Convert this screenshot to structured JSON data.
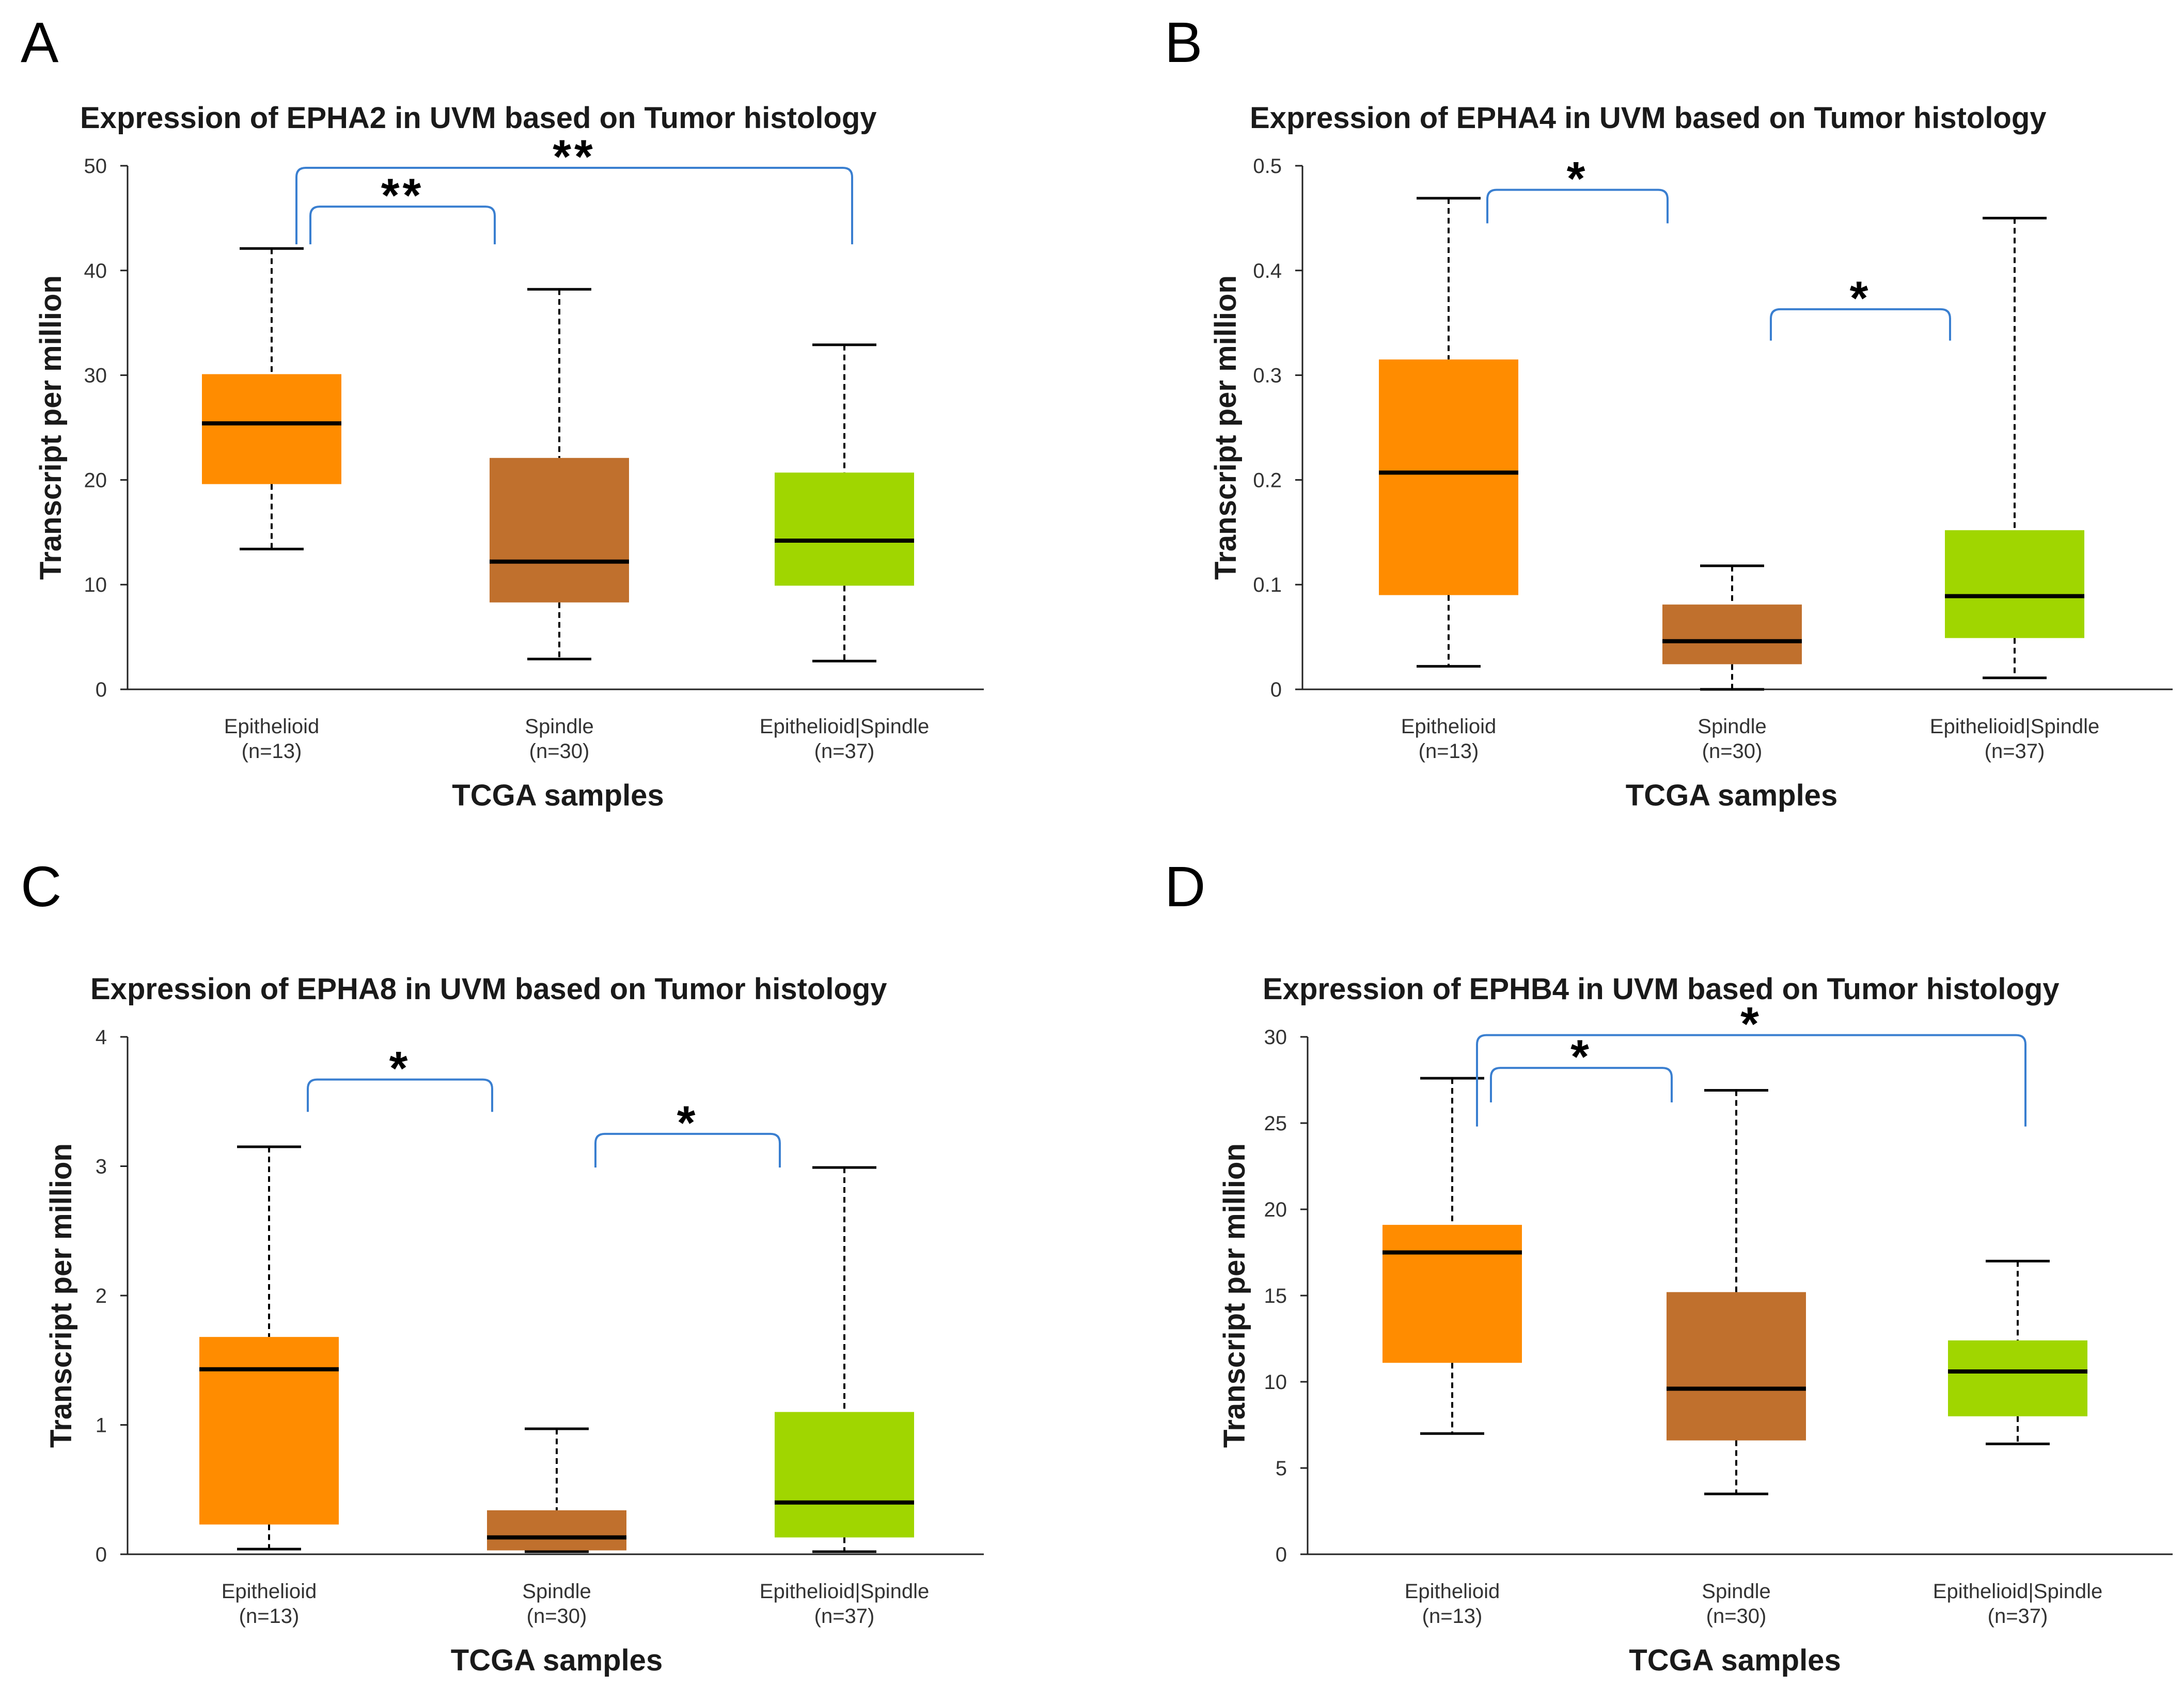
{
  "chart_data": [
    {
      "panel": "A",
      "type": "box",
      "title": "Expression of EPHA2 in UVM based on Tumor histology",
      "xlabel": "TCGA samples",
      "ylabel": "Transcript per million",
      "ylim": [
        0,
        50
      ],
      "yticks": [
        0,
        10,
        20,
        30,
        40,
        50
      ],
      "yticklabels": [
        "0",
        "10",
        "20",
        "30",
        "40",
        "50"
      ],
      "categories": [
        {
          "name": "Epithelioid",
          "n": "(n=13)",
          "color": "#ff8c00",
          "min": 13.4,
          "q1": 19.6,
          "median": 25.4,
          "q3": 30.1,
          "max": 42.1
        },
        {
          "name": "Spindle",
          "n": "(n=30)",
          "color": "#c0702d",
          "min": 2.9,
          "q1": 8.3,
          "median": 12.2,
          "q3": 22.1,
          "max": 38.2
        },
        {
          "name": "Epithelioid|Spindle",
          "n": "(n=37)",
          "color": "#a0d600",
          "min": 2.7,
          "q1": 9.9,
          "median": 14.2,
          "q3": 20.7,
          "max": 32.9
        }
      ],
      "significance": [
        {
          "from": 0,
          "to": 1,
          "label": "**",
          "level": 46.1,
          "left_drop": 42.5,
          "right_drop": 42.5
        },
        {
          "from": 0,
          "to": 2,
          "label": "**",
          "level": 49.8,
          "left_drop": 42.5,
          "right_drop": 42.5
        }
      ]
    },
    {
      "panel": "B",
      "type": "box",
      "title": "Expression of EPHA4 in UVM based on Tumor histology",
      "xlabel": "TCGA samples",
      "ylabel": "Transcript per million",
      "ylim": [
        0,
        0.5
      ],
      "yticks": [
        0,
        0.1,
        0.2,
        0.3,
        0.4,
        0.5
      ],
      "yticklabels": [
        "0",
        "0.1",
        "0.2",
        "0.3",
        "0.4",
        "0.5"
      ],
      "categories": [
        {
          "name": "Epithelioid",
          "n": "(n=13)",
          "color": "#ff8c00",
          "min": 0.022,
          "q1": 0.09,
          "median": 0.207,
          "q3": 0.315,
          "max": 0.469
        },
        {
          "name": "Spindle",
          "n": "(n=30)",
          "color": "#c0702d",
          "min": 0.0,
          "q1": 0.024,
          "median": 0.046,
          "q3": 0.081,
          "max": 0.118
        },
        {
          "name": "Epithelioid|Spindle",
          "n": "(n=37)",
          "color": "#a0d600",
          "min": 0.011,
          "q1": 0.049,
          "median": 0.089,
          "q3": 0.152,
          "max": 0.45
        }
      ],
      "significance": [
        {
          "from": 0,
          "to": 1,
          "label": "*",
          "level": 0.477,
          "left_drop": 0.445,
          "right_drop": 0.445
        },
        {
          "from": 1,
          "to": 2,
          "label": "*",
          "level": 0.363,
          "left_drop": 0.333,
          "right_drop": 0.333
        }
      ]
    },
    {
      "panel": "C",
      "type": "box",
      "title": "Expression of EPHA8 in UVM based on Tumor histology",
      "xlabel": "TCGA samples",
      "ylabel": "Transcript per million",
      "ylim": [
        0,
        4
      ],
      "yticks": [
        0,
        1,
        2,
        3,
        4
      ],
      "yticklabels": [
        "0",
        "1",
        "2",
        "3",
        "4"
      ],
      "categories": [
        {
          "name": "Epithelioid",
          "n": "(n=13)",
          "color": "#ff8c00",
          "min": 0.04,
          "q1": 0.23,
          "median": 1.43,
          "q3": 1.68,
          "max": 3.15
        },
        {
          "name": "Spindle",
          "n": "(n=30)",
          "color": "#c0702d",
          "min": 0.02,
          "q1": 0.03,
          "median": 0.13,
          "q3": 0.34,
          "max": 0.97
        },
        {
          "name": "Epithelioid|Spindle",
          "n": "(n=37)",
          "color": "#a0d600",
          "min": 0.02,
          "q1": 0.13,
          "median": 0.4,
          "q3": 1.1,
          "max": 2.99
        }
      ],
      "significance": [
        {
          "from": 0,
          "to": 1,
          "label": "*",
          "level": 3.67,
          "left_drop": 3.42,
          "right_drop": 3.42
        },
        {
          "from": 1,
          "to": 2,
          "label": "*",
          "level": 3.25,
          "left_drop": 2.99,
          "right_drop": 2.99
        }
      ]
    },
    {
      "panel": "D",
      "type": "box",
      "title": "Expression of EPHB4 in UVM based on Tumor histology",
      "xlabel": "TCGA samples",
      "ylabel": "Transcript per million",
      "ylim": [
        0,
        30
      ],
      "yticks": [
        0,
        5,
        10,
        15,
        20,
        25,
        30
      ],
      "yticklabels": [
        "0",
        "5",
        "10",
        "15",
        "20",
        "25",
        "30"
      ],
      "categories": [
        {
          "name": "Epithelioid",
          "n": "(n=13)",
          "color": "#ff8c00",
          "min": 7.0,
          "q1": 11.1,
          "median": 17.5,
          "q3": 19.1,
          "max": 27.6
        },
        {
          "name": "Spindle",
          "n": "(n=30)",
          "color": "#c0702d",
          "min": 3.5,
          "q1": 6.6,
          "median": 9.6,
          "q3": 15.2,
          "max": 26.9
        },
        {
          "name": "Epithelioid|Spindle",
          "n": "(n=37)",
          "color": "#a0d600",
          "min": 6.4,
          "q1": 8.0,
          "median": 10.6,
          "q3": 12.4,
          "max": 17.0
        }
      ],
      "significance": [
        {
          "from": 0,
          "to": 1,
          "label": "*",
          "level": 28.2,
          "left_drop": 26.2,
          "right_drop": 26.2
        },
        {
          "from": 0,
          "to": 2,
          "label": "*",
          "level": 30.1,
          "left_drop": 24.8,
          "right_drop": 24.8
        }
      ]
    }
  ]
}
